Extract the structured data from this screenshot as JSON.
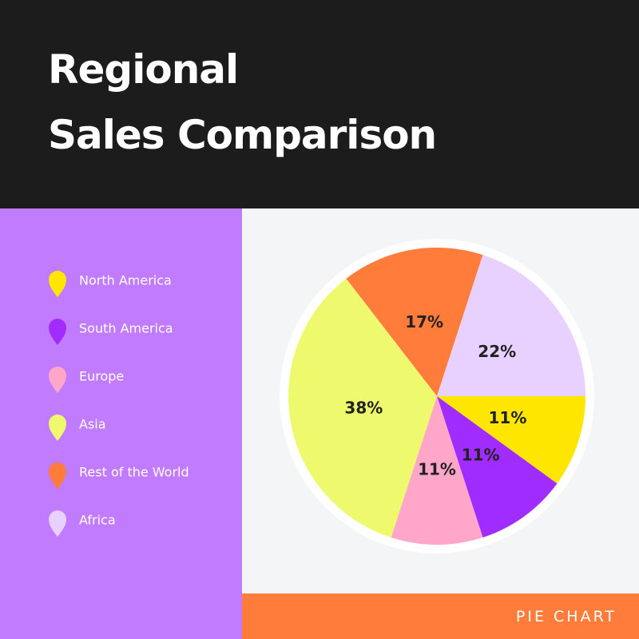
{
  "chart_data": {
    "type": "pie",
    "title": [
      "Regional",
      "Sales Comparison"
    ],
    "categories": [
      "North America",
      "South America",
      "Europe",
      "Asia",
      "Rest of the World",
      "Africa"
    ],
    "values": [
      11,
      11,
      11,
      38,
      17,
      22
    ],
    "value_labels": [
      "11%",
      "11%",
      "11%",
      "38%",
      "17%",
      "22%"
    ],
    "colors": [
      "#ffe600",
      "#a12cff",
      "#ffa6c9",
      "#eef96e",
      "#ff7c3b",
      "#e8d0ff"
    ],
    "label": "PIE CHART"
  }
}
